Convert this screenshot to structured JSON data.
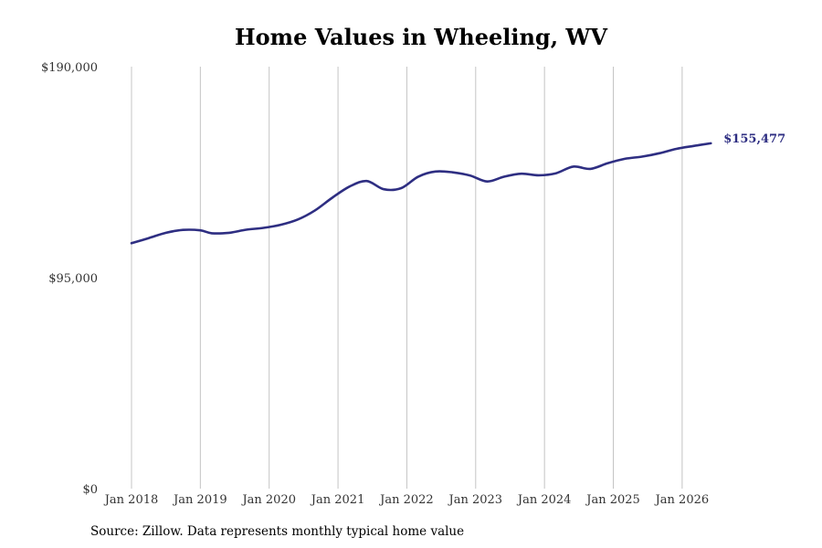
{
  "chart_data": {
    "type": "line",
    "title": "Home Values in Wheeling, WV",
    "xlabel": "",
    "ylabel": "",
    "x_ticks": [
      {
        "label": "Jan 2018",
        "t": 0
      },
      {
        "label": "Jan 2019",
        "t": 12
      },
      {
        "label": "Jan 2020",
        "t": 24
      },
      {
        "label": "Jan 2021",
        "t": 36
      },
      {
        "label": "Jan 2022",
        "t": 48
      },
      {
        "label": "Jan 2023",
        "t": 60
      },
      {
        "label": "Jan 2024",
        "t": 72
      },
      {
        "label": "Jan 2025",
        "t": 84
      },
      {
        "label": "Jan 2026",
        "t": 96
      }
    ],
    "y_ticks": [
      {
        "label": "$0",
        "value": 0
      },
      {
        "label": "$95,000",
        "value": 95000
      },
      {
        "label": "$190,000",
        "value": 190000
      }
    ],
    "ylim": [
      0,
      190000
    ],
    "grid": {
      "vertical": true,
      "horizontal": false
    },
    "series": [
      {
        "color": "#2e2e82",
        "end_label": "$155,477",
        "points": [
          {
            "date": "2018-01",
            "value": 110500
          },
          {
            "date": "2018-04",
            "value": 112800
          },
          {
            "date": "2018-07",
            "value": 115200
          },
          {
            "date": "2018-10",
            "value": 116500
          },
          {
            "date": "2019-01",
            "value": 116300
          },
          {
            "date": "2019-03",
            "value": 115000
          },
          {
            "date": "2019-06",
            "value": 115200
          },
          {
            "date": "2019-09",
            "value": 116600
          },
          {
            "date": "2019-12",
            "value": 117400
          },
          {
            "date": "2020-03",
            "value": 118800
          },
          {
            "date": "2020-06",
            "value": 121200
          },
          {
            "date": "2020-09",
            "value": 125300
          },
          {
            "date": "2020-12",
            "value": 131000
          },
          {
            "date": "2021-03",
            "value": 136000
          },
          {
            "date": "2021-06",
            "value": 138500
          },
          {
            "date": "2021-09",
            "value": 134800
          },
          {
            "date": "2021-12",
            "value": 135300
          },
          {
            "date": "2022-03",
            "value": 140500
          },
          {
            "date": "2022-06",
            "value": 142800
          },
          {
            "date": "2022-09",
            "value": 142400
          },
          {
            "date": "2022-12",
            "value": 141000
          },
          {
            "date": "2023-03",
            "value": 138300
          },
          {
            "date": "2023-06",
            "value": 140500
          },
          {
            "date": "2023-09",
            "value": 141800
          },
          {
            "date": "2023-12",
            "value": 141100
          },
          {
            "date": "2024-03",
            "value": 142000
          },
          {
            "date": "2024-06",
            "value": 145000
          },
          {
            "date": "2024-09",
            "value": 144000
          },
          {
            "date": "2024-12",
            "value": 146500
          },
          {
            "date": "2025-03",
            "value": 148500
          },
          {
            "date": "2025-06",
            "value": 149500
          },
          {
            "date": "2025-09",
            "value": 151000
          },
          {
            "date": "2025-12",
            "value": 153000
          },
          {
            "date": "2026-03",
            "value": 154300
          },
          {
            "date": "2026-06",
            "value": 155477
          }
        ]
      }
    ]
  },
  "source_note": "Source: Zillow. Data represents monthly typical home value"
}
